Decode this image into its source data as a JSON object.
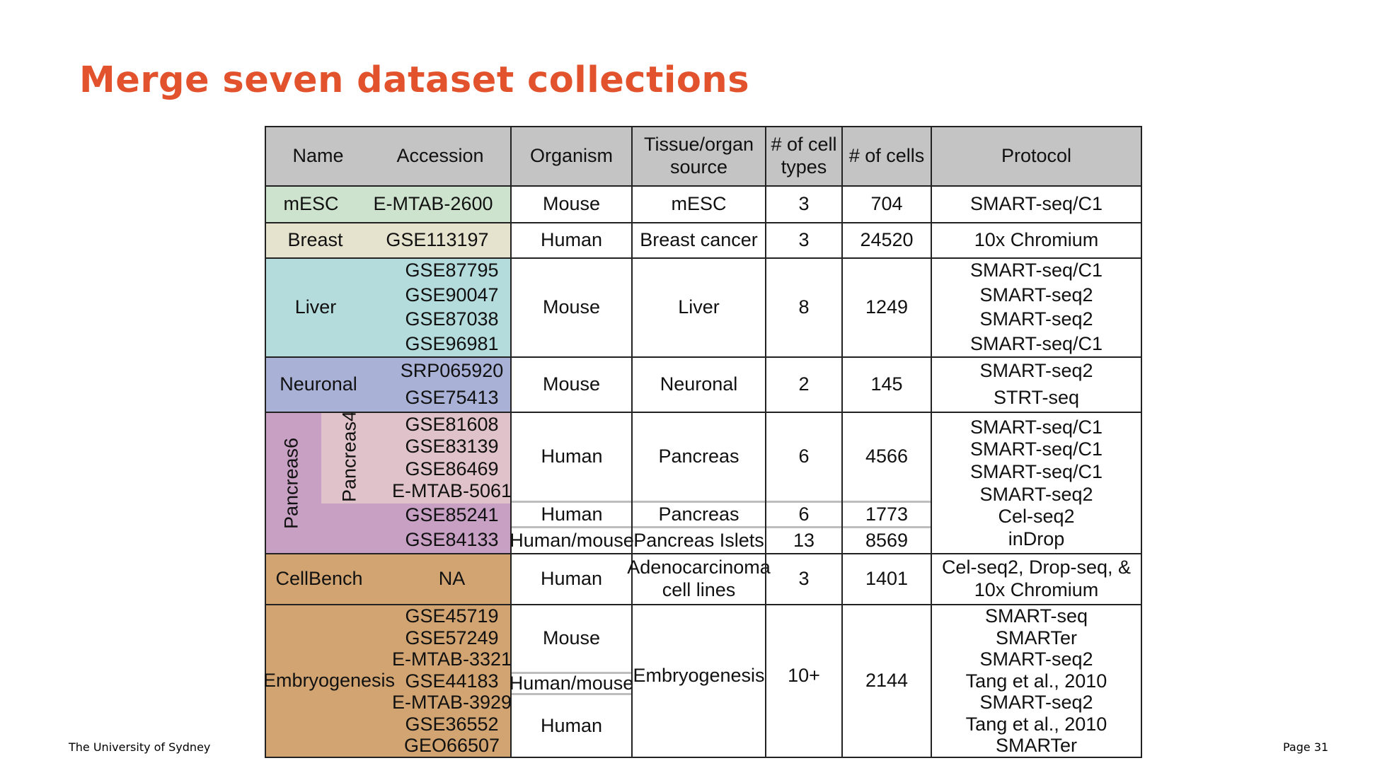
{
  "slide": {
    "title": "Merge seven dataset collections",
    "footer_left": "The University of Sydney",
    "footer_right": "Page 31"
  },
  "colors": {
    "title": "#e2532d",
    "header": "#c4c4c4",
    "mesc": "#cde3cd",
    "breast": "#e5e2cd",
    "liver": "#b5dcdc",
    "neuronal": "#a9b2d6",
    "pancreas6": "#c7a0c4",
    "pancreas4": "#e0c2cb",
    "cellbench": "#d2a471",
    "embryogenesis": "#d2a471"
  },
  "table": {
    "headers": {
      "name": "Name",
      "accession": "Accession",
      "organism": "Organism",
      "tissue": [
        "Tissue/organ",
        "source"
      ],
      "celltypes": [
        "# of cell",
        "types"
      ],
      "cells": "# of cells",
      "protocol": "Protocol"
    },
    "mesc": {
      "name": "mESC",
      "accession": "E-MTAB-2600",
      "organism": "Mouse",
      "tissue": "mESC",
      "celltypes": "3",
      "cells": "704",
      "protocol": "SMART-seq/C1"
    },
    "breast": {
      "name": "Breast",
      "accession": "GSE113197",
      "organism": "Human",
      "tissue": "Breast cancer",
      "celltypes": "3",
      "cells": "24520",
      "protocol": "10x Chromium"
    },
    "liver": {
      "name": "Liver",
      "accessions": [
        "GSE87795",
        "GSE90047",
        "GSE87038",
        "GSE96981"
      ],
      "organism": "Mouse",
      "tissue": "Liver",
      "celltypes": "8",
      "cells": "1249",
      "protocols": [
        "SMART-seq/C1",
        "SMART-seq2",
        "SMART-seq2",
        "SMART-seq/C1"
      ]
    },
    "neuronal": {
      "name": "Neuronal",
      "accessions": [
        "SRP065920",
        "GSE75413"
      ],
      "organism": "Mouse",
      "tissue": "Neuronal",
      "celltypes": "2",
      "cells": "145",
      "protocols": [
        "SMART-seq2",
        "STRT-seq"
      ]
    },
    "pancreas": {
      "name_outer": "Pancreas6",
      "name_inner": "Pancreas4",
      "accessions4": [
        "GSE81608",
        "GSE83139",
        "GSE86469",
        "E-MTAB-5061"
      ],
      "accession5": "GSE85241",
      "accession6": "GSE84133",
      "row1": {
        "organism": "Human",
        "tissue": "Pancreas",
        "celltypes": "6",
        "cells": "4566"
      },
      "row2": {
        "organism": "Human",
        "tissue": "Pancreas",
        "celltypes": "6",
        "cells": "1773"
      },
      "row3": {
        "organism": "Human/mouse",
        "tissue": "Pancreas Islets",
        "celltypes": "13",
        "cells": "8569"
      },
      "protocols": [
        "SMART-seq/C1",
        "SMART-seq/C1",
        "SMART-seq/C1",
        "SMART-seq2",
        "Cel-seq2",
        "inDrop"
      ]
    },
    "cellbench": {
      "name": "CellBench",
      "accession": "NA",
      "organism": "Human",
      "tissue": [
        "Adenocarcinoma",
        "cell lines"
      ],
      "celltypes": "3",
      "cells": "1401",
      "protocol": [
        "Cel-seq2, Drop-seq, &",
        "10x Chromium"
      ]
    },
    "embryogenesis": {
      "name": "Embryogenesis",
      "accessions": [
        "GSE45719",
        "GSE57249",
        "E-MTAB-3321",
        "GSE44183",
        "E-MTAB-3929",
        "GSE36552",
        "GEO66507"
      ],
      "organisms": [
        "Mouse",
        "Human/mouse",
        "Human"
      ],
      "tissue": "Embryogenesis",
      "celltypes": "10+",
      "cells": "2144",
      "protocols": [
        "SMART-seq",
        "SMARTer",
        "SMART-seq2",
        "Tang et al., 2010",
        "SMART-seq2",
        "Tang et al., 2010",
        "SMARTer"
      ]
    }
  }
}
